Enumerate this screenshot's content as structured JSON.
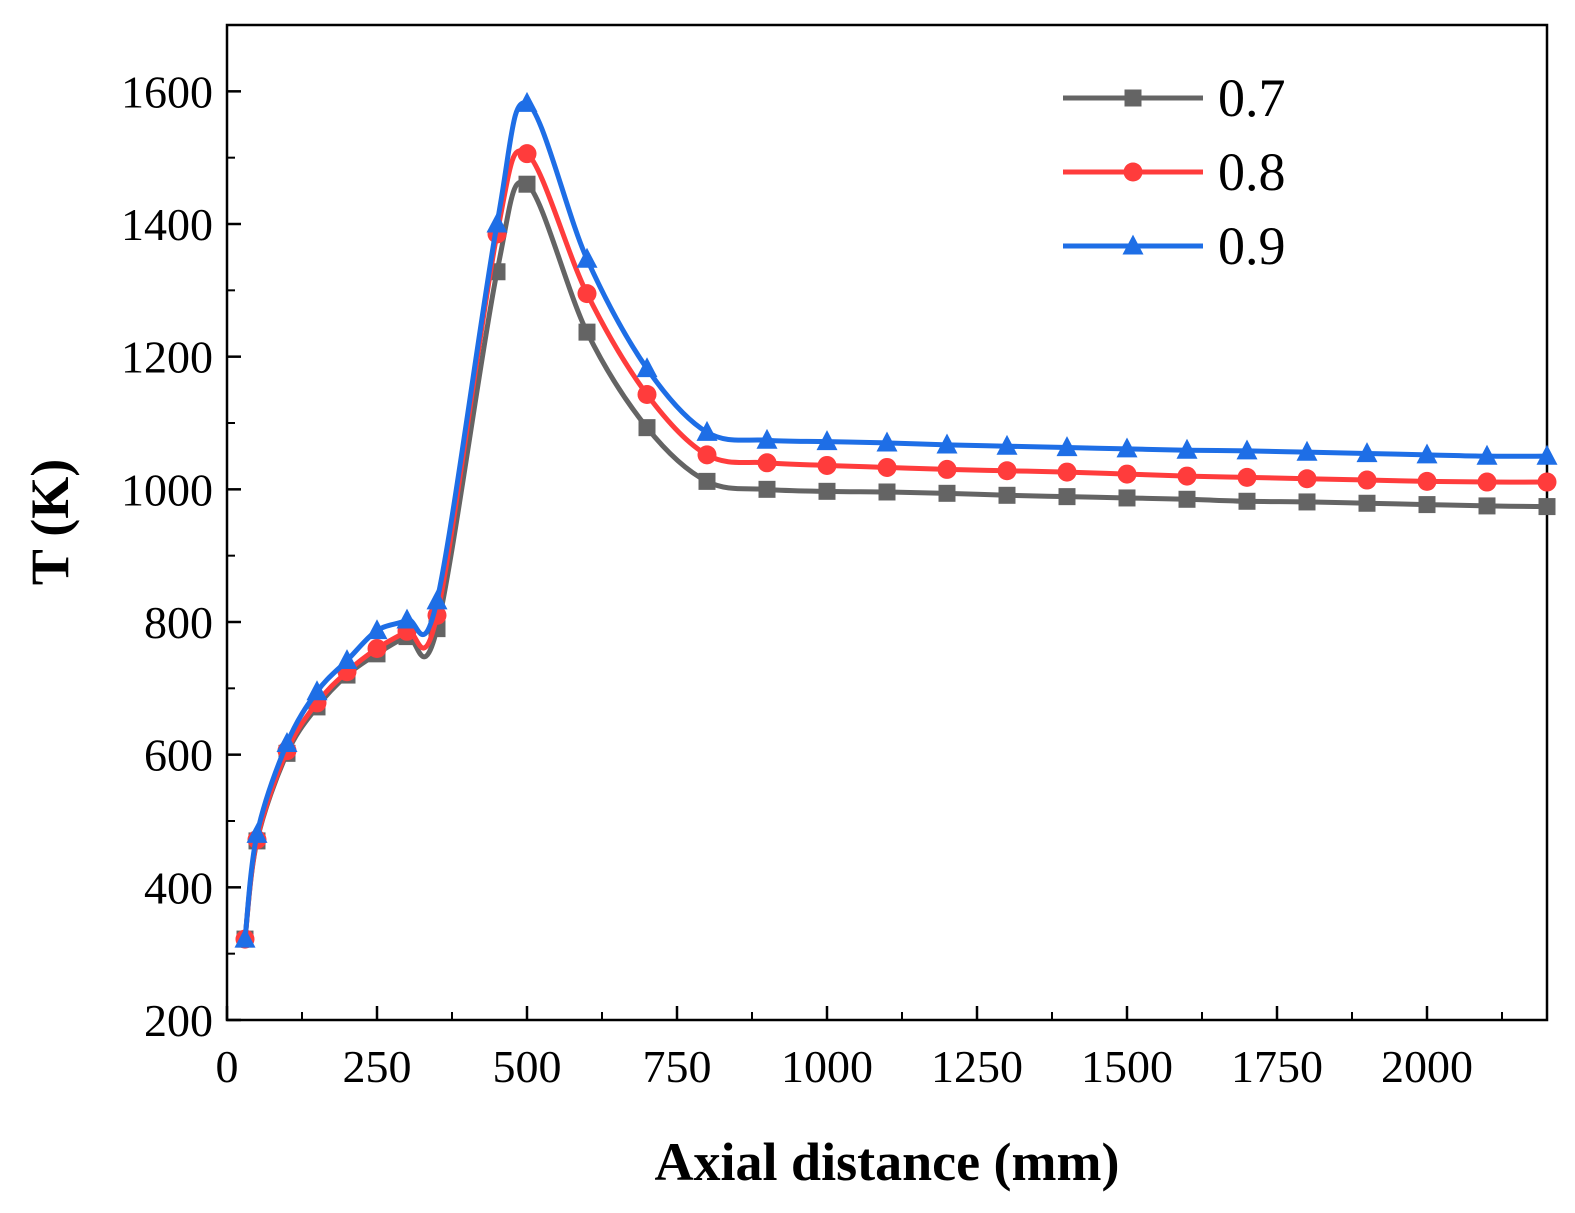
{
  "chart_data": {
    "type": "line",
    "title": "",
    "xlabel": "Axial distance (mm)",
    "ylabel": "T (K)",
    "xlim": [
      0,
      2200
    ],
    "ylim": [
      200,
      1700
    ],
    "xticks": [
      0,
      250,
      500,
      750,
      1000,
      1250,
      1500,
      1750,
      2000
    ],
    "yticks": [
      200,
      400,
      600,
      800,
      1000,
      1200,
      1400,
      1600
    ],
    "grid": false,
    "legend_position": "top-right",
    "x": [
      30,
      50,
      100,
      150,
      200,
      250,
      300,
      350,
      450,
      500,
      600,
      700,
      800,
      900,
      1000,
      1100,
      1200,
      1300,
      1400,
      1500,
      1600,
      1700,
      1800,
      1900,
      2000,
      2100,
      2200
    ],
    "series": [
      {
        "name": "0.7",
        "color": "#646464",
        "marker": "square",
        "values": [
          322,
          470,
          602,
          672,
          720,
          752,
          778,
          790,
          1328,
          1460,
          1237,
          1093,
          1012,
          1000,
          997,
          996,
          994,
          991,
          989,
          987,
          985,
          982,
          981,
          979,
          977,
          975,
          974
        ]
      },
      {
        "name": "0.8",
        "color": "#ff3c3c",
        "marker": "circle",
        "values": [
          322,
          472,
          606,
          678,
          725,
          760,
          786,
          810,
          1385,
          1506,
          1295,
          1143,
          1052,
          1040,
          1036,
          1033,
          1030,
          1028,
          1026,
          1023,
          1020,
          1018,
          1016,
          1014,
          1012,
          1011,
          1011
        ]
      },
      {
        "name": "0.9",
        "color": "#1e6ee6",
        "marker": "triangle",
        "values": [
          322,
          480,
          617,
          695,
          742,
          787,
          803,
          832,
          1400,
          1582,
          1347,
          1182,
          1086,
          1074,
          1072,
          1070,
          1067,
          1065,
          1063,
          1061,
          1059,
          1058,
          1056,
          1054,
          1052,
          1050,
          1050
        ]
      }
    ]
  }
}
